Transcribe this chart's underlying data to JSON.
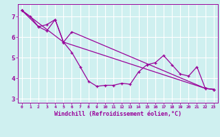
{
  "xlabel": "Windchill (Refroidissement éolien,°C)",
  "bg_color": "#cff0f0",
  "line_color": "#990099",
  "grid_color": "#ffffff",
  "xlim": [
    -0.5,
    23.5
  ],
  "ylim": [
    2.8,
    7.6
  ],
  "yticks": [
    3,
    4,
    5,
    6,
    7
  ],
  "xticks": [
    0,
    1,
    2,
    3,
    4,
    5,
    6,
    7,
    8,
    9,
    10,
    11,
    12,
    13,
    14,
    15,
    16,
    17,
    18,
    19,
    20,
    21,
    22,
    23
  ],
  "series1_x": [
    0,
    1,
    2,
    3,
    4,
    5,
    6,
    7,
    8,
    9,
    10,
    11,
    12,
    13,
    14,
    15,
    16,
    17,
    18,
    19,
    20,
    21,
    22,
    23
  ],
  "series1_y": [
    7.3,
    7.0,
    6.5,
    6.3,
    6.85,
    5.75,
    5.25,
    4.55,
    3.85,
    3.6,
    3.65,
    3.65,
    3.75,
    3.7,
    4.3,
    4.65,
    4.75,
    5.1,
    4.65,
    4.2,
    4.1,
    4.55,
    3.5,
    3.45
  ],
  "series2_x": [
    0,
    2,
    3,
    4,
    5,
    6,
    22,
    23
  ],
  "series2_y": [
    7.3,
    6.5,
    6.6,
    6.85,
    5.75,
    6.25,
    3.5,
    3.45
  ],
  "series3_x": [
    0,
    5,
    22,
    23
  ],
  "series3_y": [
    7.3,
    5.75,
    3.5,
    3.45
  ]
}
